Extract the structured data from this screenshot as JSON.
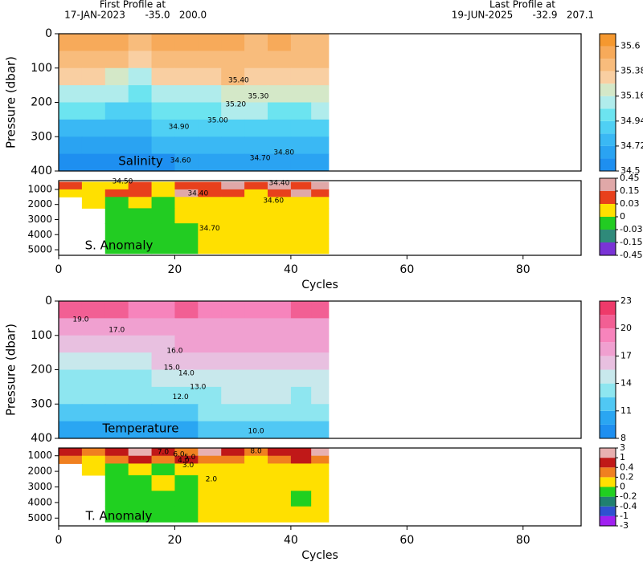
{
  "header": {
    "first": {
      "label": "First Profile at",
      "date": "17-JAN-2023",
      "lat": "-35.0",
      "lon": "200.0"
    },
    "last": {
      "label": "Last Profile at",
      "date": "19-JUN-2025",
      "lat": "-32.9",
      "lon": "207.1"
    }
  },
  "chart_data": [
    {
      "type": "heatmap",
      "label": "Salinity",
      "ylabel": "Pressure (dbar)",
      "xlim": [
        0,
        90
      ],
      "ylim": [
        400,
        0
      ],
      "yticks": [
        0,
        100,
        200,
        300,
        400
      ],
      "x": [
        2,
        6,
        10,
        14,
        18,
        22,
        26,
        30,
        34,
        38,
        42,
        45
      ],
      "y": [
        25,
        75,
        125,
        175,
        225,
        275,
        325,
        375
      ],
      "z": [
        [
          35.55,
          35.5,
          35.5,
          35.45,
          35.5,
          35.5,
          35.55,
          35.5,
          35.45,
          35.5,
          35.45,
          35.45
        ],
        [
          35.48,
          35.45,
          35.42,
          35.35,
          35.42,
          35.45,
          35.48,
          35.45,
          35.42,
          35.45,
          35.42,
          35.42
        ],
        [
          35.3,
          35.3,
          35.25,
          35.15,
          35.3,
          35.35,
          35.35,
          35.38,
          35.35,
          35.35,
          35.35,
          35.35
        ],
        [
          35.1,
          35.1,
          35.05,
          35.0,
          35.1,
          35.15,
          35.15,
          35.25,
          35.2,
          35.2,
          35.2,
          35.2
        ],
        [
          34.95,
          34.95,
          34.92,
          34.9,
          34.95,
          34.98,
          35.0,
          35.05,
          35.05,
          35.0,
          35.0,
          35.05
        ],
        [
          34.82,
          34.82,
          34.8,
          34.82,
          34.85,
          34.88,
          34.88,
          34.92,
          34.9,
          34.88,
          34.88,
          34.9
        ],
        [
          34.68,
          34.68,
          34.68,
          34.7,
          34.72,
          34.75,
          34.76,
          34.8,
          34.78,
          34.77,
          34.76,
          34.78
        ],
        [
          34.58,
          34.58,
          34.58,
          34.6,
          34.6,
          34.62,
          34.64,
          34.66,
          34.66,
          34.65,
          34.64,
          34.66
        ]
      ],
      "levels": [
        34.5,
        34.61,
        34.72,
        34.83,
        34.94,
        35.05,
        35.16,
        35.27,
        35.38,
        35.49,
        35.6,
        35.71
      ],
      "colors": [
        "#1e8ff0",
        "#2aa3f2",
        "#3ab8f4",
        "#4fd0f4",
        "#6ce4f0",
        "#b0ecec",
        "#d4e8c8",
        "#f9cfa2",
        "#f8bc7c",
        "#f7aa5a",
        "#f5982f"
      ],
      "cticks": [
        34.5,
        34.72,
        34.94,
        35.16,
        35.38,
        35.6
      ],
      "contour_labels": [
        {
          "label": "35.40",
          "x": 31,
          "y": 136
        },
        {
          "label": "35.30",
          "x": 34.4,
          "y": 182
        },
        {
          "label": "35.20",
          "x": 30.5,
          "y": 206
        },
        {
          "label": "35.00",
          "x": 27.4,
          "y": 253
        },
        {
          "label": "34.90",
          "x": 20.7,
          "y": 271
        },
        {
          "label": "34.80",
          "x": 38.8,
          "y": 346
        },
        {
          "label": "34.70",
          "x": 34.7,
          "y": 363
        },
        {
          "label": "34.60",
          "x": 21,
          "y": 370
        }
      ]
    },
    {
      "type": "heatmap",
      "label": "S. Anomaly",
      "xlabel": "Cycles",
      "xlim": [
        0,
        90
      ],
      "ylim": [
        5370,
        420
      ],
      "yticks": [
        1000,
        2000,
        3000,
        4000,
        5000
      ],
      "xticks": [
        0,
        20,
        40,
        60,
        80
      ],
      "x": [
        2,
        6,
        10,
        14,
        18,
        22,
        26,
        30,
        34,
        38,
        42,
        45
      ],
      "y": [
        750,
        1250,
        1750,
        2750,
        3750,
        4750
      ],
      "z": [
        [
          0.05,
          0.02,
          0.02,
          0.1,
          0.02,
          0.05,
          0.1,
          0.2,
          0.05,
          0.2,
          0.1,
          0.2
        ],
        [
          0.02,
          0.01,
          0.1,
          0.05,
          0.02,
          0.2,
          0.1,
          0.05,
          0.02,
          0.1,
          0.2,
          0.1
        ],
        [
          null,
          0.01,
          -0.01,
          0.01,
          -0.01,
          0.01,
          0.02,
          0.01,
          0.02,
          0.01,
          0.01,
          0.02
        ],
        [
          null,
          null,
          -0.01,
          -0.01,
          -0.01,
          0.01,
          0.01,
          0.01,
          0.01,
          0.01,
          0.01,
          0.01
        ],
        [
          null,
          null,
          -0.01,
          -0.01,
          -0.01,
          -0.01,
          0.01,
          0.01,
          0.01,
          0.01,
          0.01,
          0.01
        ],
        [
          null,
          null,
          -0.01,
          -0.01,
          -0.01,
          -0.01,
          0.01,
          0.01,
          0.01,
          0.01,
          0.01,
          0.01
        ]
      ],
      "levels": [
        -0.45,
        -0.15,
        -0.03,
        0,
        0.03,
        0.15,
        0.45
      ],
      "colors": [
        "#7a33d6",
        "#2f8a7a",
        "#22cc22",
        "#ffe000",
        "#e8401c",
        "#e0a8a8"
      ],
      "contour_labels": [
        {
          "label": "34.50",
          "x": 11,
          "y": 470
        },
        {
          "label": "34.40",
          "x": 24,
          "y": 1260
        },
        {
          "label": "34.40",
          "x": 38,
          "y": 580
        },
        {
          "label": "34.60",
          "x": 37,
          "y": 1740
        },
        {
          "label": "34.70",
          "x": 26,
          "y": 3580
        }
      ]
    },
    {
      "type": "heatmap",
      "label": "Temperature",
      "ylabel": "Pressure (dbar)",
      "xlim": [
        0,
        90
      ],
      "ylim": [
        400,
        0
      ],
      "yticks": [
        0,
        100,
        200,
        300,
        400
      ],
      "x": [
        2,
        6,
        10,
        14,
        18,
        22,
        26,
        30,
        34,
        38,
        42,
        45
      ],
      "y": [
        25,
        75,
        125,
        175,
        225,
        275,
        325,
        375
      ],
      "z": [
        [
          20.5,
          20.5,
          20.0,
          19.5,
          19.5,
          20.0,
          19.5,
          18.5,
          18.5,
          19.0,
          20.0,
          20.5
        ],
        [
          18.0,
          17.8,
          17.5,
          17.5,
          17.8,
          18.0,
          18.0,
          17.8,
          17.5,
          17.5,
          17.8,
          18.0
        ],
        [
          16.5,
          16.5,
          16.2,
          16.5,
          16.8,
          17.0,
          17.0,
          17.2,
          17.0,
          17.0,
          17.0,
          17.0
        ],
        [
          15.0,
          15.0,
          14.8,
          15.0,
          15.5,
          16.0,
          16.2,
          16.5,
          16.5,
          16.2,
          16.2,
          16.3
        ],
        [
          13.8,
          13.8,
          13.5,
          13.8,
          14.2,
          14.5,
          14.8,
          15.2,
          15.3,
          15.0,
          15.0,
          15.2
        ],
        [
          12.5,
          12.5,
          12.5,
          12.8,
          13.0,
          13.3,
          13.5,
          14.0,
          14.2,
          14.0,
          13.8,
          14.0
        ],
        [
          11.0,
          11.2,
          11.3,
          11.5,
          11.8,
          12.2,
          12.5,
          12.8,
          13.0,
          12.8,
          12.6,
          12.8
        ],
        [
          9.8,
          10.0,
          10.2,
          10.2,
          10.5,
          10.8,
          11.0,
          11.5,
          11.8,
          11.6,
          11.5,
          11.7
        ]
      ],
      "levels": [
        8,
        9.5,
        11,
        12.5,
        14,
        15.5,
        17,
        18.5,
        20,
        21.5,
        23
      ],
      "colors": [
        "#1e8ff0",
        "#2aa6f2",
        "#50c8f4",
        "#8ee6f0",
        "#c8e8ec",
        "#e8c0e0",
        "#f0a0d0",
        "#f784bc",
        "#f25f94",
        "#ee3a6a"
      ],
      "cticks": [
        8,
        11,
        14,
        17,
        20,
        23
      ],
      "contour_labels": [
        {
          "label": "19.0",
          "x": 3.8,
          "y": 54
        },
        {
          "label": "17.0",
          "x": 10,
          "y": 84
        },
        {
          "label": "16.0",
          "x": 20,
          "y": 145
        },
        {
          "label": "15.0",
          "x": 19.5,
          "y": 194
        },
        {
          "label": "14.0",
          "x": 22,
          "y": 210
        },
        {
          "label": "13.0",
          "x": 24,
          "y": 250
        },
        {
          "label": "12.0",
          "x": 21,
          "y": 280
        },
        {
          "label": "10.0",
          "x": 34,
          "y": 379
        }
      ]
    },
    {
      "type": "heatmap",
      "label": "T. Anomaly",
      "xlabel": "Cycles",
      "xlim": [
        0,
        90
      ],
      "ylim": [
        5500,
        500
      ],
      "yticks": [
        1000,
        2000,
        3000,
        4000,
        5000
      ],
      "xticks": [
        0,
        20,
        40,
        60,
        80
      ],
      "x": [
        2,
        6,
        10,
        14,
        18,
        22,
        26,
        30,
        34,
        38,
        42,
        45
      ],
      "y": [
        750,
        1250,
        1750,
        2750,
        3750,
        4750
      ],
      "z": [
        [
          0.5,
          0.3,
          0.5,
          1.2,
          0.5,
          0.3,
          1.5,
          0.5,
          0.3,
          0.6,
          0.5,
          1.5
        ],
        [
          0.3,
          0.1,
          0.3,
          0.5,
          0.3,
          0.6,
          0.3,
          0.2,
          0.1,
          0.3,
          0.5,
          0.3
        ],
        [
          null,
          0.1,
          -0.1,
          0.1,
          -0.1,
          0.1,
          0.1,
          0.1,
          0.1,
          0.1,
          0.1,
          0.1
        ],
        [
          null,
          null,
          -0.1,
          -0.1,
          0.1,
          -0.1,
          0.1,
          0.1,
          0.1,
          0.1,
          0.1,
          0.1
        ],
        [
          null,
          null,
          -0.1,
          -0.1,
          -0.1,
          -0.1,
          0.1,
          0.1,
          0.1,
          0.1,
          -0.1,
          0.1
        ],
        [
          null,
          null,
          -0.1,
          -0.1,
          -0.1,
          -0.1,
          0.1,
          0.1,
          0.1,
          0.1,
          0.1,
          0.1
        ]
      ],
      "levels": [
        -3,
        -1,
        -0.4,
        -0.2,
        0,
        0.2,
        0.4,
        1,
        3
      ],
      "colors": [
        "#a020f0",
        "#3050d0",
        "#208070",
        "#20d020",
        "#ffe000",
        "#f08020",
        "#c01818",
        "#e8b0b0"
      ],
      "contour_labels": [
        {
          "label": "8.0",
          "x": 34,
          "y": 700
        },
        {
          "label": "7.0",
          "x": 18,
          "y": 750
        },
        {
          "label": "6.0",
          "x": 20.7,
          "y": 900
        },
        {
          "label": "5.0",
          "x": 22.6,
          "y": 1100
        },
        {
          "label": "4.0",
          "x": 21.5,
          "y": 1300
        },
        {
          "label": "3.0",
          "x": 22.3,
          "y": 1600
        },
        {
          "label": "2.0",
          "x": 26.3,
          "y": 2500
        }
      ]
    }
  ]
}
